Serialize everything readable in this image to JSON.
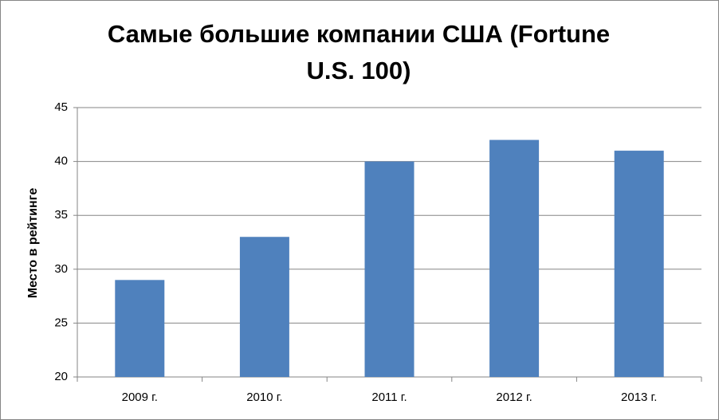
{
  "chart_data": {
    "type": "bar",
    "title": "Самые большие компании США (Fortune U.S. 100)",
    "y_label": "Место в рейтинге",
    "categories": [
      "2009 г.",
      "2010 г.",
      "2011 г.",
      "2012 г.",
      "2013 г."
    ],
    "values": [
      29,
      33,
      40,
      42,
      41
    ],
    "color": "#4f81bd",
    "ylim": [
      20,
      45
    ],
    "yticks": [
      20,
      25,
      30,
      35,
      40,
      45
    ],
    "grid": true
  }
}
